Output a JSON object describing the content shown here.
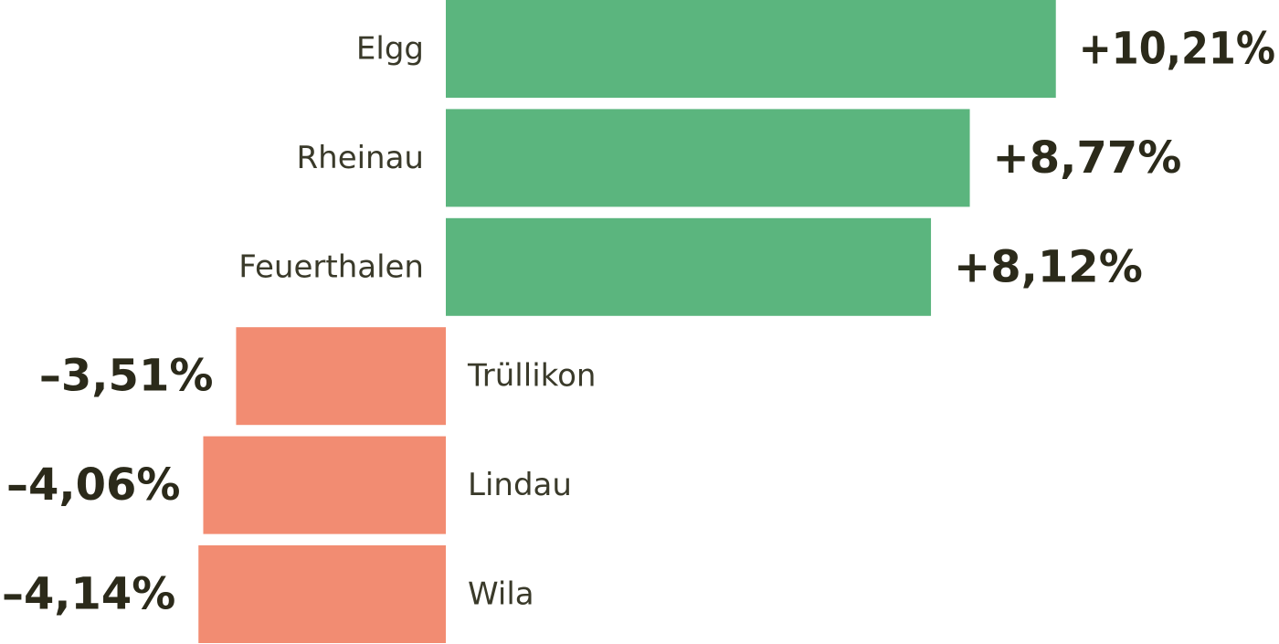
{
  "chart_data": {
    "type": "bar",
    "orientation": "horizontal-diverging",
    "title": "",
    "xlabel": "",
    "ylabel": "",
    "categories": [
      "Elgg",
      "Rheinau",
      "Feuerthalen",
      "Trüllikon",
      "Lindau",
      "Wila"
    ],
    "values": [
      10.21,
      8.77,
      8.12,
      -3.51,
      -4.06,
      -4.14
    ],
    "value_labels": [
      "+10,21%",
      "+8,77%",
      "+8,12%",
      "–3,51%",
      "–4,06%",
      "–4,14%"
    ],
    "grid": false,
    "legend": "none",
    "colors": {
      "positive": "#5bb57e",
      "negative": "#f28c72",
      "value_text": "#2b2a1a",
      "label_text": "#3a3a2a"
    }
  }
}
